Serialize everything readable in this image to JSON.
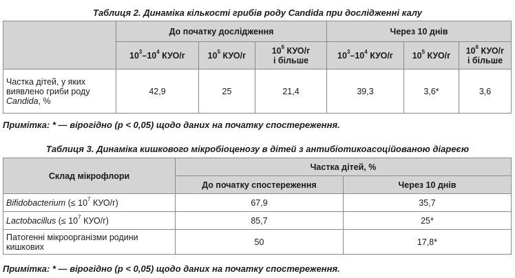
{
  "table2": {
    "caption": "Таблиця 2. Динаміка кількості грибів роду Candida при дослідженні калу",
    "groups": [
      "До початку дослідження",
      "Через 10 днів"
    ],
    "subheaders": [
      {
        "base": "10",
        "exp": "3",
        "mid": "–10",
        "exp2": "4",
        "unit": " КУО/г",
        "extra": ""
      },
      {
        "base": "10",
        "exp": "5",
        "mid": "",
        "exp2": "",
        "unit": " КУО/г",
        "extra": ""
      },
      {
        "base": "10",
        "exp": "6",
        "mid": "",
        "exp2": "",
        "unit": " КУО/г",
        "extra": "і більше"
      },
      {
        "base": "10",
        "exp": "3",
        "mid": "–10",
        "exp2": "4",
        "unit": " КУО/г",
        "extra": ""
      },
      {
        "base": "10",
        "exp": "5",
        "mid": "",
        "exp2": "",
        "unit": " КУО/г",
        "extra": ""
      },
      {
        "base": "10",
        "exp": "6",
        "mid": "",
        "exp2": "",
        "unit": " КУО/г",
        "extra": "і більше"
      }
    ],
    "row_label_main": "Частка дітей, у яких виявлено гриби роду",
    "row_label_italic": "Candida",
    "row_label_tail": ", %",
    "values": [
      "42,9",
      "25",
      "21,4",
      "39,3",
      "3,6*",
      "3,6"
    ],
    "note": "Примітка: * — вірогідно (р < 0,05) щодо даних на початку спостереження."
  },
  "table3": {
    "caption": "Таблиця 3. Динаміка кишкового мікробіоценозу в дітей з антибіотикоасоційованою діареєю",
    "col_composition": "Склад мікрофлори",
    "col_share": "Частка дітей, %",
    "col_before": "До початку спостереження",
    "col_after": "Через 10 днів",
    "rows": [
      {
        "name_italic": "Bifidobacterium",
        "name_rest": " (≤ 10",
        "exp": "7",
        "unit": " КУО/г)",
        "before": "67,9",
        "after": "35,7"
      },
      {
        "name_italic": "Lactobacillus",
        "name_rest": " (≤ 10",
        "exp": "7",
        "unit": " КУО/г)",
        "before": "85,7",
        "after": "25*"
      },
      {
        "name_italic": "",
        "name_rest": "Патогенні мікроорганізми родини кишкових",
        "exp": "",
        "unit": "",
        "before": "50",
        "after": "17,8*"
      }
    ],
    "note": "Примітка: * — вірогідно (р < 0,05) щодо даних на початку спостереження."
  }
}
